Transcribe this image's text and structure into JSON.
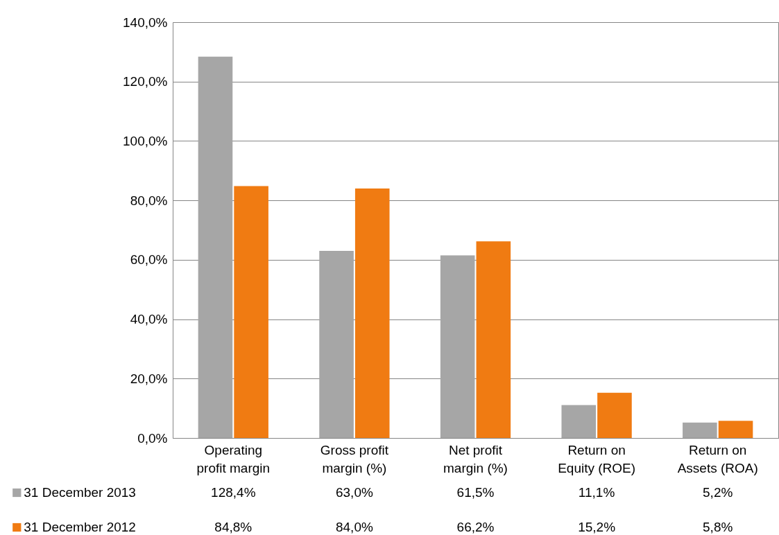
{
  "chart_data": {
    "type": "bar",
    "categories": [
      "Operating profit margin",
      "Gross profit margin (%)",
      "Net profit margin (%)",
      "Return on Equity (ROE)",
      "Return on Assets (ROA)"
    ],
    "series": [
      {
        "name": "31 December 2013",
        "color": "#a6a6a6",
        "values": [
          128.4,
          63.0,
          61.5,
          11.1,
          5.2
        ],
        "value_labels": [
          "128,4%",
          "63,0%",
          "61,5%",
          "11,1%",
          "5,2%"
        ]
      },
      {
        "name": "31 December 2012",
        "color": "#f07b12",
        "values": [
          84.8,
          84.0,
          66.2,
          15.2,
          5.8
        ],
        "value_labels": [
          "84,8%",
          "84,0%",
          "66,2%",
          "15,2%",
          "5,8%"
        ]
      }
    ],
    "ylim": [
      0,
      140
    ],
    "yticks": [
      {
        "value": 0,
        "label": "0,0%"
      },
      {
        "value": 20,
        "label": "20,0%"
      },
      {
        "value": 40,
        "label": "40,0%"
      },
      {
        "value": 60,
        "label": "60,0%"
      },
      {
        "value": 80,
        "label": "80,0%"
      },
      {
        "value": 100,
        "label": "100,0%"
      },
      {
        "value": 120,
        "label": "120,0%"
      },
      {
        "value": 140,
        "label": "140,0%"
      }
    ],
    "grid": "y",
    "legend": "bottom"
  }
}
